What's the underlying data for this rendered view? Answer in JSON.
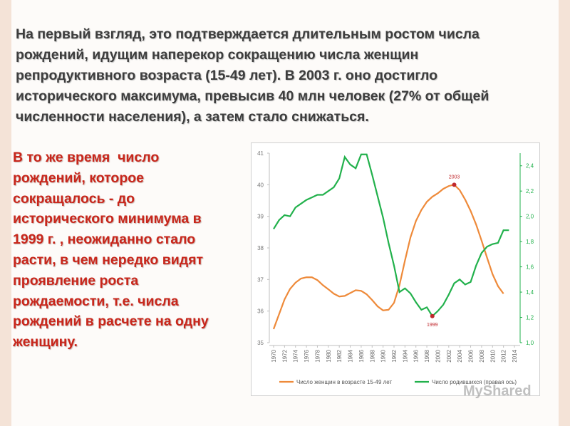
{
  "slide": {
    "heading": [
      "На первый взгляд, это подтверждается длительным ростом числа",
      "рождений, идущим наперекор сокращению числа женщин",
      "репродуктивного возраста (15-49 лет). В 2003 г. оно достигло",
      "исторического максимума, превысив 40 млн человек (27% от общей",
      "численности населения), а затем стало снижаться."
    ],
    "side_text": [
      "В то же время  число",
      "рождений, которое",
      "сокращалось - до",
      "исторического минимума в",
      "1999 г. , неожиданно стало",
      "расти, в чем нередко видят",
      "проявление роста",
      "рождаемости, т.е. числа",
      "рождений в расчете на одну",
      "женщину."
    ],
    "watermark": "MyShared"
  },
  "chart_data": {
    "type": "line",
    "x": [
      1970,
      1971,
      1972,
      1973,
      1974,
      1975,
      1976,
      1977,
      1978,
      1979,
      1980,
      1981,
      1982,
      1983,
      1984,
      1985,
      1986,
      1987,
      1988,
      1989,
      1990,
      1991,
      1992,
      1993,
      1994,
      1995,
      1996,
      1997,
      1998,
      1999,
      2000,
      2001,
      2002,
      2003,
      2004,
      2005,
      2006,
      2007,
      2008,
      2009,
      2010,
      2011,
      2012,
      2013
    ],
    "xlim": [
      1970,
      2014
    ],
    "xticks": [
      1970,
      1972,
      1974,
      1976,
      1978,
      1980,
      1982,
      1984,
      1986,
      1988,
      1990,
      1992,
      1994,
      1996,
      1998,
      2000,
      2002,
      2004,
      2006,
      2008,
      2010,
      2012,
      2014
    ],
    "ylim": [
      35,
      41
    ],
    "yticks": [
      35,
      36,
      37,
      38,
      39,
      40,
      41
    ],
    "y2lim": [
      1.0,
      2.5
    ],
    "y2ticks": [
      {
        "value": 1.0,
        "label": "1,0"
      },
      {
        "value": 1.2,
        "label": "1,2"
      },
      {
        "value": 1.4,
        "label": "1,4"
      },
      {
        "value": 1.6,
        "label": "1,6"
      },
      {
        "value": 1.8,
        "label": "1,8"
      },
      {
        "value": 2.0,
        "label": "2,0"
      },
      {
        "value": 2.2,
        "label": "2,2"
      },
      {
        "value": 2.4,
        "label": "2,4"
      }
    ],
    "series": [
      {
        "name": "Число женщин в возрасте 15-49 лет",
        "color": "#ee8a3a",
        "values": [
          35.43,
          35.9,
          36.37,
          36.7,
          36.9,
          37.03,
          37.07,
          37.07,
          36.98,
          36.82,
          36.69,
          36.55,
          36.46,
          36.48,
          36.57,
          36.66,
          36.64,
          36.53,
          36.35,
          36.15,
          36.02,
          36.04,
          36.26,
          36.82,
          37.6,
          38.33,
          38.85,
          39.2,
          39.46,
          39.62,
          39.73,
          39.87,
          39.96,
          40.0,
          39.83,
          39.53,
          39.17,
          38.74,
          38.23,
          37.69,
          37.17,
          36.79,
          36.55,
          null
        ]
      },
      {
        "name": "Число родившихся (правая ось)",
        "color": "#22b14c",
        "axis": "y2",
        "values": [
          1.9,
          1.97,
          2.01,
          2.0,
          2.07,
          2.1,
          2.13,
          2.15,
          2.17,
          2.17,
          2.2,
          2.23,
          2.3,
          2.47,
          2.41,
          2.38,
          2.49,
          2.49,
          2.33,
          2.16,
          1.99,
          1.79,
          1.61,
          1.4,
          1.43,
          1.39,
          1.32,
          1.26,
          1.28,
          1.21,
          1.25,
          1.3,
          1.38,
          1.47,
          1.5,
          1.46,
          1.48,
          1.61,
          1.71,
          1.76,
          1.78,
          1.79,
          1.89,
          1.89
        ]
      }
    ],
    "annotations": [
      "2003",
      "1999"
    ]
  }
}
